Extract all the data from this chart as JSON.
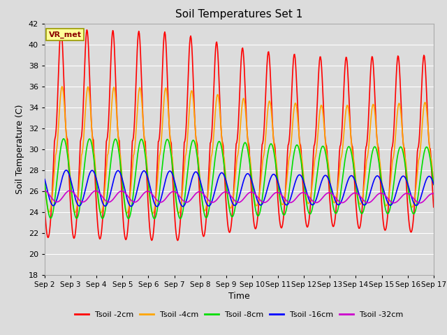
{
  "title": "Soil Temperatures Set 1",
  "xlabel": "Time",
  "ylabel": "Soil Temperature (C)",
  "ylim": [
    18,
    42
  ],
  "yticks": [
    18,
    20,
    22,
    24,
    26,
    28,
    30,
    32,
    34,
    36,
    38,
    40,
    42
  ],
  "x_labels": [
    "Sep 2",
    "Sep 3",
    "Sep 4",
    "Sep 5",
    "Sep 6",
    "Sep 7",
    "Sep 8",
    "Sep 9",
    "Sep 10",
    "Sep 11",
    "Sep 12",
    "Sep 13",
    "Sep 14",
    "Sep 15",
    "Sep 16",
    "Sep 17"
  ],
  "fig_bg_color": "#dcdcdc",
  "plot_bg_color": "#dcdcdc",
  "grid_color": "#ffffff",
  "annotation_text": "VR_met",
  "annotation_box_color": "#ffff99",
  "annotation_border_color": "#999900",
  "series_names": [
    "Tsoil -2cm",
    "Tsoil -4cm",
    "Tsoil -8cm",
    "Tsoil -16cm",
    "Tsoil -32cm"
  ],
  "series_colors": [
    "#ff0000",
    "#ffa500",
    "#00dd00",
    "#0000ff",
    "#cc00cc"
  ],
  "series_linewidth": 1.2,
  "num_days": 15
}
